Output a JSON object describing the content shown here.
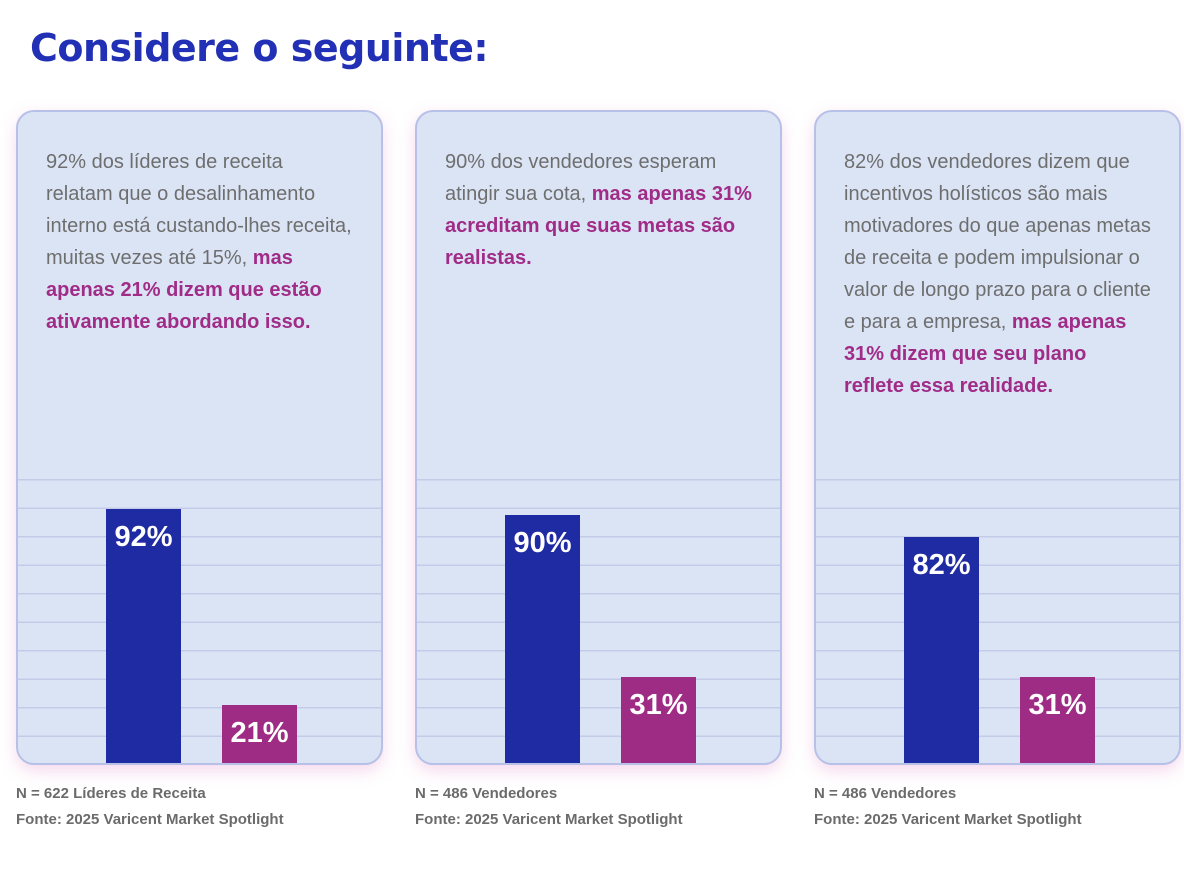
{
  "page": {
    "title": "Considere o seguinte:"
  },
  "colors": {
    "title-blue": "#2130b4",
    "bar-blue": "#1f2ba2",
    "bar-magenta": "#9e2b84",
    "hl-magenta": "#a02c88",
    "card-bg": "#dbe4f5",
    "card-border": "#b7c0e7",
    "gridline": "#c4cbe9",
    "body-gray": "#6e6e6e",
    "footer-gray": "#6b6b6b"
  },
  "cards": [
    {
      "text_normal": "92% dos líderes de receita relatam que o desalinhamento interno está custando-lhes receita, muitas vezes até 15%,",
      "text_highlight": "mas apenas 21% dizem que estão ativamente abordando isso.",
      "footer_n": "N = 622 Líderes de Receita",
      "footer_source": "Fonte: 2025 Varicent Market Spotlight"
    },
    {
      "text_normal": "90% dos vendedores esperam atingir sua cota,",
      "text_highlight": "mas apenas 31% acreditam que suas metas são realistas.",
      "footer_n": "N = 486 Vendedores",
      "footer_source": "Fonte: 2025 Varicent Market Spotlight"
    },
    {
      "text_normal": "82% dos vendedores dizem que incentivos holísticos são mais motivadores do que apenas metas de receita e podem impulsionar o valor de longo prazo para o cliente e para a empresa,",
      "text_highlight": "mas apenas 31% dizem que seu plano reflete essa realidade.",
      "footer_n": "N = 486 Vendedores",
      "footer_source": "Fonte: 2025 Varicent Market Spotlight"
    }
  ],
  "chart_data": [
    {
      "type": "bar",
      "title": "",
      "categories": [
        "92%",
        "21%"
      ],
      "values": [
        92,
        21
      ],
      "data_labels": [
        "92%",
        "21%"
      ],
      "bar_colors": [
        "#1f2ba2",
        "#9e2b84"
      ],
      "ylim": [
        0,
        100
      ],
      "grid": "horizontal-lines",
      "legend": "none",
      "sample": "N = 622 Líderes de Receita",
      "source": "Fonte: 2025 Varicent Market Spotlight"
    },
    {
      "type": "bar",
      "title": "",
      "categories": [
        "90%",
        "31%"
      ],
      "values": [
        90,
        31
      ],
      "data_labels": [
        "90%",
        "31%"
      ],
      "bar_colors": [
        "#1f2ba2",
        "#9e2b84"
      ],
      "ylim": [
        0,
        100
      ],
      "grid": "horizontal-lines",
      "legend": "none",
      "sample": "N = 486 Vendedores",
      "source": "Fonte: 2025 Varicent Market Spotlight"
    },
    {
      "type": "bar",
      "title": "",
      "categories": [
        "82%",
        "31%"
      ],
      "values": [
        82,
        31
      ],
      "data_labels": [
        "82%",
        "31%"
      ],
      "bar_colors": [
        "#1f2ba2",
        "#9e2b84"
      ],
      "ylim": [
        0,
        100
      ],
      "grid": "horizontal-lines",
      "legend": "none",
      "sample": "N = 486 Vendedores",
      "source": "Fonte: 2025 Varicent Market Spotlight"
    }
  ]
}
